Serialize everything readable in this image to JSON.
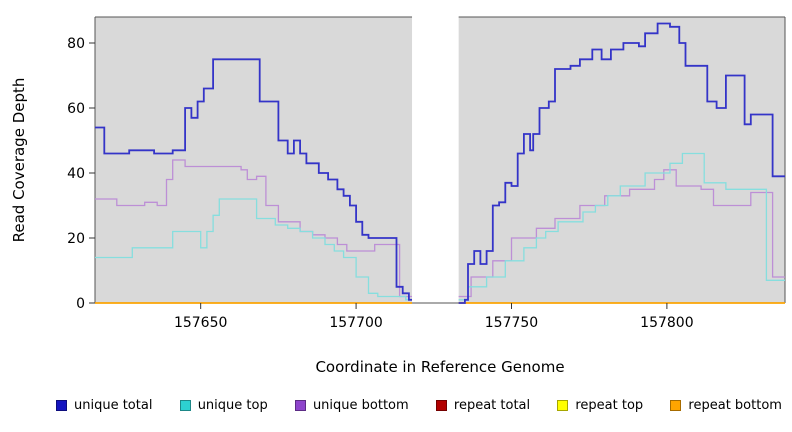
{
  "chart_data": {
    "type": "line",
    "subtype": "step-after",
    "title": "",
    "xlabel": "Coordinate in Reference Genome",
    "ylabel": "Read Coverage Depth",
    "xlim": [
      157616,
      157838
    ],
    "ylim": [
      0,
      88
    ],
    "xticks": [
      "157650",
      "157700",
      "157750",
      "157800"
    ],
    "xtick_values": [
      157650,
      157700,
      157750,
      157800
    ],
    "yticks": [
      "0",
      "20",
      "40",
      "60",
      "80"
    ],
    "ytick_values": [
      0,
      20,
      40,
      60,
      80
    ],
    "panel_bg": "#d9d9d9",
    "frame_color": "#555555",
    "gap_region": {
      "x_start": 157718,
      "x_end": 157733
    },
    "grid": false,
    "legend_position": "bottom",
    "series": [
      {
        "name": "repeat total",
        "color": "#b20000",
        "line_width": 1.2,
        "segments": [
          [
            [
              157616,
              0
            ],
            [
              157718,
              0
            ]
          ],
          [
            [
              157733,
              0
            ],
            [
              157838,
              0
            ]
          ]
        ]
      },
      {
        "name": "repeat top",
        "color": "#ffff00",
        "line_width": 1.2,
        "segments": [
          [
            [
              157616,
              0
            ],
            [
              157718,
              0
            ]
          ],
          [
            [
              157733,
              0
            ],
            [
              157838,
              0
            ]
          ]
        ]
      },
      {
        "name": "repeat bottom",
        "color": "#ffa500",
        "line_width": 1.6,
        "segments": [
          [
            [
              157616,
              0
            ],
            [
              157718,
              0
            ]
          ],
          [
            [
              157733,
              0
            ],
            [
              157838,
              0
            ]
          ]
        ]
      },
      {
        "name": "unique bottom",
        "color": "#bd8fd6",
        "line_width": 1.3,
        "segments": [
          [
            [
              157616,
              32
            ],
            [
              157623,
              30
            ],
            [
              157630,
              30
            ],
            [
              157632,
              31
            ],
            [
              157636,
              30
            ],
            [
              157639,
              38
            ],
            [
              157641,
              44
            ],
            [
              157645,
              42
            ],
            [
              157661,
              42
            ],
            [
              157663,
              41
            ],
            [
              157665,
              38
            ],
            [
              157668,
              39
            ],
            [
              157671,
              30
            ],
            [
              157675,
              25
            ],
            [
              157680,
              25
            ],
            [
              157682,
              22
            ],
            [
              157686,
              21
            ],
            [
              157690,
              20
            ],
            [
              157694,
              18
            ],
            [
              157697,
              16
            ],
            [
              157703,
              16
            ],
            [
              157706,
              18
            ],
            [
              157712,
              18
            ],
            [
              157714,
              2
            ],
            [
              157718,
              2
            ]
          ],
          [
            [
              157733,
              2
            ],
            [
              157737,
              8
            ],
            [
              157741,
              8
            ],
            [
              157744,
              13
            ],
            [
              157748,
              13
            ],
            [
              157750,
              20
            ],
            [
              157756,
              20
            ],
            [
              157758,
              23
            ],
            [
              157762,
              23
            ],
            [
              157764,
              26
            ],
            [
              157770,
              26
            ],
            [
              157772,
              30
            ],
            [
              157778,
              30
            ],
            [
              157780,
              33
            ],
            [
              157786,
              33
            ],
            [
              157788,
              35
            ],
            [
              157793,
              35
            ],
            [
              157796,
              38
            ],
            [
              157799,
              41
            ],
            [
              157803,
              36
            ],
            [
              157808,
              36
            ],
            [
              157811,
              35
            ],
            [
              157815,
              30
            ],
            [
              157823,
              30
            ],
            [
              157827,
              34
            ],
            [
              157832,
              34
            ],
            [
              157834,
              8
            ],
            [
              157838,
              8
            ]
          ]
        ]
      },
      {
        "name": "unique top",
        "color": "#86dede",
        "line_width": 1.3,
        "segments": [
          [
            [
              157616,
              14
            ],
            [
              157626,
              14
            ],
            [
              157628,
              17
            ],
            [
              157639,
              17
            ],
            [
              157641,
              22
            ],
            [
              157648,
              22
            ],
            [
              157650,
              17
            ],
            [
              157652,
              22
            ],
            [
              157654,
              27
            ],
            [
              157656,
              32
            ],
            [
              157666,
              32
            ],
            [
              157668,
              26
            ],
            [
              157672,
              26
            ],
            [
              157674,
              24
            ],
            [
              157678,
              23
            ],
            [
              157682,
              22
            ],
            [
              157686,
              20
            ],
            [
              157690,
              18
            ],
            [
              157693,
              16
            ],
            [
              157696,
              14
            ],
            [
              157699,
              14
            ],
            [
              157700,
              8
            ],
            [
              157704,
              3
            ],
            [
              157707,
              2
            ],
            [
              157713,
              2
            ],
            [
              157716,
              1
            ],
            [
              157718,
              1
            ]
          ],
          [
            [
              157733,
              1
            ],
            [
              157736,
              5
            ],
            [
              157740,
              5
            ],
            [
              157742,
              8
            ],
            [
              157746,
              8
            ],
            [
              157748,
              13
            ],
            [
              157752,
              13
            ],
            [
              157754,
              17
            ],
            [
              157758,
              20
            ],
            [
              157761,
              22
            ],
            [
              157765,
              25
            ],
            [
              157770,
              25
            ],
            [
              157773,
              28
            ],
            [
              157777,
              30
            ],
            [
              157781,
              33
            ],
            [
              157785,
              36
            ],
            [
              157790,
              36
            ],
            [
              157793,
              40
            ],
            [
              157798,
              40
            ],
            [
              157801,
              43
            ],
            [
              157805,
              46
            ],
            [
              157810,
              46
            ],
            [
              157812,
              37
            ],
            [
              157816,
              37
            ],
            [
              157819,
              35
            ],
            [
              157830,
              35
            ],
            [
              157832,
              7
            ],
            [
              157838,
              7
            ]
          ]
        ]
      },
      {
        "name": "unique total",
        "color": "#3434c8",
        "line_width": 1.8,
        "segments": [
          [
            [
              157616,
              54
            ],
            [
              157619,
              46
            ],
            [
              157627,
              47
            ],
            [
              157635,
              46
            ],
            [
              157641,
              47
            ],
            [
              157645,
              60
            ],
            [
              157647,
              57
            ],
            [
              157649,
              62
            ],
            [
              157651,
              66
            ],
            [
              157654,
              75
            ],
            [
              157667,
              75
            ],
            [
              157669,
              62
            ],
            [
              157673,
              62
            ],
            [
              157675,
              50
            ],
            [
              157678,
              46
            ],
            [
              157680,
              50
            ],
            [
              157682,
              46
            ],
            [
              157684,
              43
            ],
            [
              157688,
              40
            ],
            [
              157691,
              38
            ],
            [
              157694,
              35
            ],
            [
              157696,
              33
            ],
            [
              157698,
              30
            ],
            [
              157700,
              25
            ],
            [
              157702,
              21
            ],
            [
              157704,
              20
            ],
            [
              157712,
              20
            ],
            [
              157713,
              5
            ],
            [
              157715,
              3
            ],
            [
              157717,
              1
            ],
            [
              157718,
              1
            ]
          ],
          [
            [
              157733,
              0
            ],
            [
              157735,
              1
            ],
            [
              157736,
              12
            ],
            [
              157738,
              16
            ],
            [
              157740,
              12
            ],
            [
              157742,
              16
            ],
            [
              157744,
              30
            ],
            [
              157746,
              31
            ],
            [
              157748,
              37
            ],
            [
              157750,
              36
            ],
            [
              157752,
              46
            ],
            [
              157754,
              52
            ],
            [
              157756,
              47
            ],
            [
              157757,
              52
            ],
            [
              157759,
              60
            ],
            [
              157762,
              62
            ],
            [
              157764,
              72
            ],
            [
              157769,
              73
            ],
            [
              157772,
              75
            ],
            [
              157776,
              78
            ],
            [
              157779,
              75
            ],
            [
              157782,
              78
            ],
            [
              157786,
              80
            ],
            [
              157791,
              79
            ],
            [
              157793,
              83
            ],
            [
              157797,
              86
            ],
            [
              157801,
              85
            ],
            [
              157804,
              80
            ],
            [
              157806,
              73
            ],
            [
              157811,
              73
            ],
            [
              157813,
              62
            ],
            [
              157816,
              60
            ],
            [
              157819,
              70
            ],
            [
              157823,
              70
            ],
            [
              157825,
              55
            ],
            [
              157827,
              58
            ],
            [
              157831,
              58
            ],
            [
              157834,
              39
            ],
            [
              157838,
              39
            ]
          ]
        ]
      }
    ],
    "legend": [
      {
        "label": "unique total",
        "color": "#1414c0"
      },
      {
        "label": "unique top",
        "color": "#2dd0d0"
      },
      {
        "label": "unique bottom",
        "color": "#8e44cc"
      },
      {
        "label": "repeat total",
        "color": "#b20000"
      },
      {
        "label": "repeat top",
        "color": "#ffff00"
      },
      {
        "label": "repeat bottom",
        "color": "#ffa500"
      }
    ]
  }
}
